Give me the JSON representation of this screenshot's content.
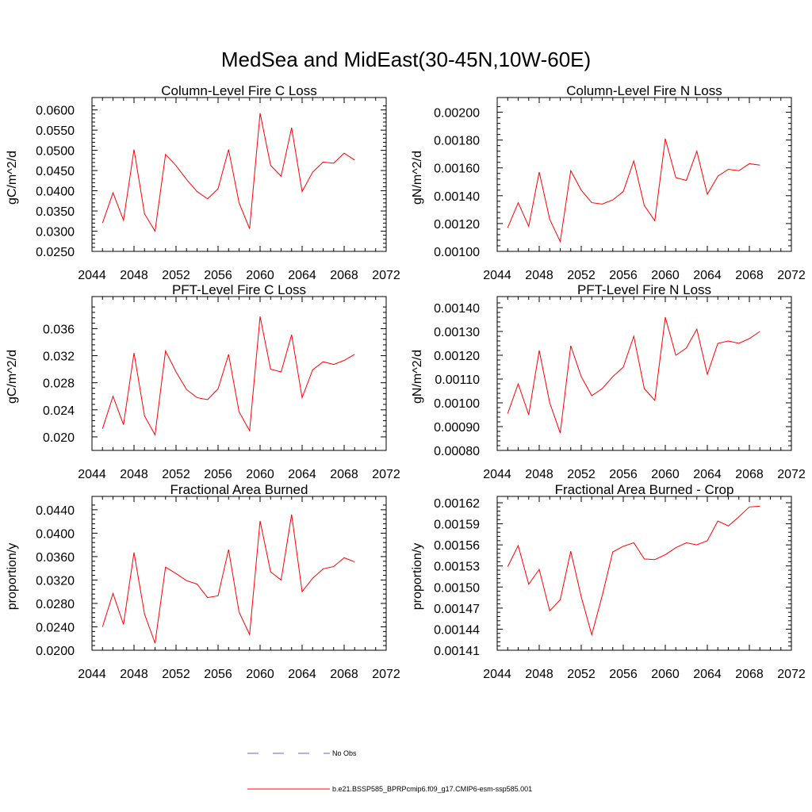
{
  "title": "MedSea and MidEast(30-45N,10W-60E)",
  "colors": {
    "model": "#ff0000",
    "obs": "#6666cc",
    "axis": "#000000"
  },
  "legend": [
    {
      "label": "No Obs",
      "style": "dashed",
      "color": "#6666cc"
    },
    {
      "label": "b.e21.BSSP585_BPRPcmip6.f09_g17.CMIP6-esm-ssp585.001",
      "style": "solid",
      "color": "#ff0000"
    }
  ],
  "chart_data": [
    {
      "type": "line",
      "title": "Column-Level Fire C Loss",
      "ylabel": "gC/m^2/d",
      "xlim": [
        2044,
        2072
      ],
      "ylim": [
        0.025,
        0.0615
      ],
      "xticks": [
        2044,
        2048,
        2052,
        2056,
        2060,
        2064,
        2068,
        2072
      ],
      "yticks": [
        "0.0250",
        "0.0300",
        "0.0350",
        "0.0400",
        "0.0450",
        "0.0500",
        "0.0550",
        "0.0600"
      ],
      "x": [
        2045,
        2046,
        2047,
        2048,
        2049,
        2050,
        2051,
        2052,
        2053,
        2054,
        2055,
        2056,
        2057,
        2058,
        2059,
        2060,
        2061,
        2062,
        2063,
        2064,
        2065,
        2066,
        2067,
        2068,
        2069
      ],
      "series": [
        {
          "values": [
            0.032,
            0.0395,
            0.0327,
            0.0502,
            0.0343,
            0.03,
            0.049,
            0.0462,
            0.0428,
            0.0398,
            0.038,
            0.0405,
            0.0502,
            0.037,
            0.0306,
            0.0592,
            0.0463,
            0.0436,
            0.0556,
            0.0398,
            0.0446,
            0.0471,
            0.0468,
            0.0493,
            0.0476
          ]
        }
      ]
    },
    {
      "type": "line",
      "title": "Column-Level Fire N Loss",
      "ylabel": "gN/m^2/d",
      "xlim": [
        2044,
        2072
      ],
      "ylim": [
        0.001,
        0.00206
      ],
      "xticks": [
        2044,
        2048,
        2052,
        2056,
        2060,
        2064,
        2068,
        2072
      ],
      "yticks": [
        "0.00100",
        "0.00120",
        "0.00140",
        "0.00160",
        "0.00180",
        "0.00200"
      ],
      "x": [
        2045,
        2046,
        2047,
        2048,
        2049,
        2050,
        2051,
        2052,
        2053,
        2054,
        2055,
        2056,
        2057,
        2058,
        2059,
        2060,
        2061,
        2062,
        2063,
        2064,
        2065,
        2066,
        2067,
        2068,
        2069
      ],
      "series": [
        {
          "values": [
            0.00117,
            0.00135,
            0.00118,
            0.00157,
            0.00123,
            0.00107,
            0.00158,
            0.00144,
            0.00135,
            0.00134,
            0.00137,
            0.00143,
            0.00165,
            0.00133,
            0.00122,
            0.00181,
            0.00153,
            0.00151,
            0.00172,
            0.00141,
            0.00154,
            0.00159,
            0.00158,
            0.00163,
            0.00162
          ]
        }
      ]
    },
    {
      "type": "line",
      "title": "PFT-Level Fire C Loss",
      "ylabel": "gC/m^2/d",
      "xlim": [
        2044,
        2072
      ],
      "ylim": [
        0.018,
        0.0398
      ],
      "xticks": [
        2044,
        2048,
        2052,
        2056,
        2060,
        2064,
        2068,
        2072
      ],
      "yticks": [
        "0.020",
        "0.024",
        "0.028",
        "0.032",
        "0.036"
      ],
      "x": [
        2045,
        2046,
        2047,
        2048,
        2049,
        2050,
        2051,
        2052,
        2053,
        2054,
        2055,
        2056,
        2057,
        2058,
        2059,
        2060,
        2061,
        2062,
        2063,
        2064,
        2065,
        2066,
        2067,
        2068,
        2069
      ],
      "series": [
        {
          "values": [
            0.0212,
            0.026,
            0.0218,
            0.0324,
            0.0231,
            0.0203,
            0.0327,
            0.0296,
            0.027,
            0.0258,
            0.0255,
            0.0271,
            0.0322,
            0.0237,
            0.0209,
            0.0378,
            0.03,
            0.0296,
            0.0351,
            0.0258,
            0.0299,
            0.0311,
            0.0307,
            0.0313,
            0.0322
          ]
        }
      ]
    },
    {
      "type": "line",
      "title": "PFT-Level Fire N Loss",
      "ylabel": "gN/m^2/d",
      "xlim": [
        2044,
        2072
      ],
      "ylim": [
        0.0008,
        0.00142
      ],
      "xticks": [
        2044,
        2048,
        2052,
        2056,
        2060,
        2064,
        2068,
        2072
      ],
      "yticks": [
        "0.00080",
        "0.00090",
        "0.00100",
        "0.00110",
        "0.00120",
        "0.00130",
        "0.00140"
      ],
      "x": [
        2045,
        2046,
        2047,
        2048,
        2049,
        2050,
        2051,
        2052,
        2053,
        2054,
        2055,
        2056,
        2057,
        2058,
        2059,
        2060,
        2061,
        2062,
        2063,
        2064,
        2065,
        2066,
        2067,
        2068,
        2069
      ],
      "series": [
        {
          "values": [
            0.000955,
            0.00108,
            0.00095,
            0.00122,
            0.001,
            0.000873,
            0.00124,
            0.00111,
            0.00103,
            0.00106,
            0.00111,
            0.00115,
            0.00128,
            0.00106,
            0.00101,
            0.00136,
            0.0012,
            0.00123,
            0.00131,
            0.00112,
            0.00125,
            0.00126,
            0.00125,
            0.00127,
            0.0013
          ]
        }
      ]
    },
    {
      "type": "line",
      "title": "Fractional Area Burned",
      "ylabel": "proportion/y",
      "xlim": [
        2044,
        2072
      ],
      "ylim": [
        0.02,
        0.0452
      ],
      "xticks": [
        2044,
        2048,
        2052,
        2056,
        2060,
        2064,
        2068,
        2072
      ],
      "yticks": [
        "0.0200",
        "0.0240",
        "0.0280",
        "0.0320",
        "0.0360",
        "0.0400",
        "0.0440"
      ],
      "x": [
        2045,
        2046,
        2047,
        2048,
        2049,
        2050,
        2051,
        2052,
        2053,
        2054,
        2055,
        2056,
        2057,
        2058,
        2059,
        2060,
        2061,
        2062,
        2063,
        2064,
        2065,
        2066,
        2067,
        2068,
        2069
      ],
      "series": [
        {
          "values": [
            0.024,
            0.0297,
            0.0244,
            0.0367,
            0.0262,
            0.0212,
            0.0342,
            0.0331,
            0.0319,
            0.0313,
            0.029,
            0.0293,
            0.0372,
            0.0265,
            0.0227,
            0.0421,
            0.0334,
            0.032,
            0.0432,
            0.03,
            0.0323,
            0.0339,
            0.0343,
            0.0358,
            0.0351
          ]
        }
      ]
    },
    {
      "type": "line",
      "title": "Fractional Area Burned - Crop",
      "ylabel": "proportion/y",
      "xlim": [
        2044,
        2072
      ],
      "ylim": [
        0.00141,
        0.00162
      ],
      "xticks": [
        2044,
        2048,
        2052,
        2056,
        2060,
        2064,
        2068,
        2072
      ],
      "yticks": [
        "0.00141",
        "0.00144",
        "0.00147",
        "0.00150",
        "0.00153",
        "0.00156",
        "0.00159",
        "0.00162"
      ],
      "x": [
        2045,
        2046,
        2047,
        2048,
        2049,
        2050,
        2051,
        2052,
        2053,
        2054,
        2055,
        2056,
        2057,
        2058,
        2059,
        2060,
        2061,
        2062,
        2063,
        2064,
        2065,
        2066,
        2067,
        2068,
        2069
      ],
      "series": [
        {
          "values": [
            0.001529,
            0.001559,
            0.001504,
            0.001525,
            0.001466,
            0.001482,
            0.001551,
            0.001486,
            0.001432,
            0.001488,
            0.00155,
            0.001558,
            0.001563,
            0.00154,
            0.001539,
            0.001546,
            0.001556,
            0.001563,
            0.00156,
            0.001566,
            0.001594,
            0.001587,
            0.0016,
            0.001614,
            0.001615
          ]
        }
      ]
    }
  ]
}
